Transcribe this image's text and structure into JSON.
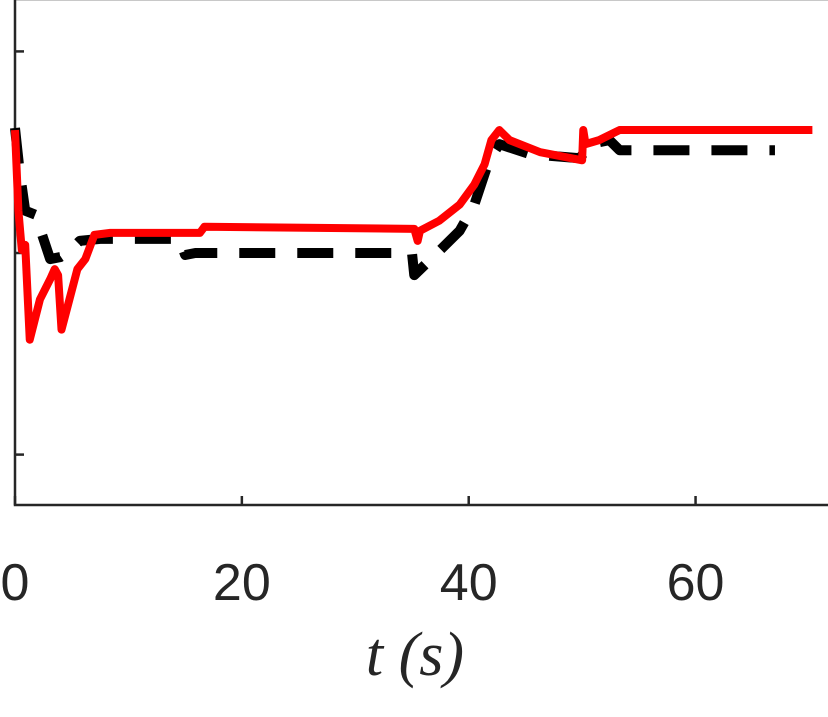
{
  "chart_data": {
    "type": "line",
    "xlabel": "t  (s)",
    "xlim": [
      0,
      71.5
    ],
    "xticks": [
      0,
      20,
      40,
      60
    ],
    "ylim": [
      -1.25,
      1.26
    ],
    "yticks": [
      -1,
      0,
      1
    ],
    "series": [
      {
        "color": "#000000",
        "dashed": true,
        "x": [
          0,
          0.4,
          0.9,
          1.8,
          3.1,
          4,
          4.8,
          5.7,
          7.5,
          14.5,
          15,
          15.9,
          35,
          35.2,
          37.4,
          39.2,
          40.5,
          41.8,
          42.7,
          45.4,
          49.8,
          50.7,
          52.4,
          53.3,
          67
        ],
        "values": [
          0.62,
          0.41,
          0.21,
          0.19,
          -0.03,
          -0.02,
          0.01,
          0.06,
          0.07,
          0.07,
          -0.01,
          0,
          0,
          -0.11,
          0.01,
          0.11,
          0.24,
          0.46,
          0.54,
          0.49,
          0.47,
          0.54,
          0.56,
          0.51,
          0.51
        ]
      },
      {
        "color": "#ff0000",
        "dashed": false,
        "x": [
          0,
          0.3,
          0.6,
          0.9,
          1.3,
          2.2,
          3.1,
          3.5,
          3.8,
          4.1,
          4.8,
          5.5,
          6.2,
          7,
          8.4,
          16.3,
          16.7,
          35.2,
          35.5,
          35.7,
          37.4,
          39.2,
          40.5,
          41.4,
          42,
          42.7,
          43.6,
          46.3,
          50,
          50.1,
          50.3,
          51.5,
          53.3,
          70.3
        ],
        "values": [
          0.61,
          0.21,
          0.015,
          0.04,
          -0.43,
          -0.23,
          -0.13,
          -0.08,
          -0.11,
          -0.38,
          -0.23,
          -0.08,
          -0.03,
          0.09,
          0.1,
          0.1,
          0.13,
          0.12,
          0.06,
          0.11,
          0.16,
          0.24,
          0.34,
          0.44,
          0.56,
          0.61,
          0.56,
          0.5,
          0.46,
          0.61,
          0.54,
          0.56,
          0.61,
          0.61
        ]
      }
    ]
  }
}
